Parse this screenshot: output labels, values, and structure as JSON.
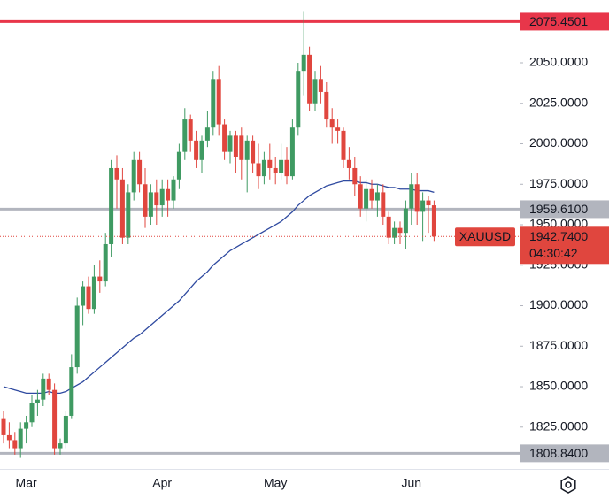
{
  "chart_data": {
    "type": "candlestick",
    "categories": [
      null,
      null,
      null,
      null,
      "Mar",
      null,
      null,
      null,
      null,
      null,
      null,
      null,
      null,
      null,
      null,
      null,
      null,
      null,
      null,
      null,
      null,
      null,
      null,
      null,
      null,
      null,
      null,
      null,
      "Apr",
      null,
      null,
      null,
      null,
      null,
      null,
      null,
      null,
      null,
      null,
      null,
      null,
      null,
      null,
      null,
      null,
      null,
      null,
      null,
      "May",
      null,
      null,
      null,
      null,
      null,
      null,
      null,
      null,
      null,
      null,
      null,
      null,
      null,
      null,
      null,
      null,
      null,
      null,
      null,
      null,
      null,
      null,
      null,
      "Jun",
      null,
      null,
      null,
      null
    ],
    "open": [
      1830,
      1820,
      1817,
      1812,
      1824,
      1828,
      1840,
      1842,
      1855,
      1848,
      1812,
      1815,
      1832,
      1862,
      1900,
      1912,
      1898,
      1918,
      1915,
      1938,
      1985,
      1978,
      1942,
      1970,
      1990,
      1975,
      1955,
      1970,
      1962,
      1972,
      1965,
      1978,
      1995,
      2015,
      2002,
      1990,
      2002,
      2010,
      2040,
      2012,
      1995,
      2005,
      2005,
      1990,
      2002,
      1988,
      1980,
      1990,
      1985,
      1982,
      1990,
      1980,
      2010,
      2045,
      2055,
      2025,
      2040,
      2032,
      2015,
      2010,
      2008,
      1990,
      1985,
      1975,
      1960,
      1972,
      1965,
      1970,
      1955,
      1942,
      1948,
      1945,
      1960,
      1975,
      1958,
      1965,
      1962
    ],
    "high": [
      1835,
      1828,
      1822,
      1828,
      1832,
      1845,
      1848,
      1858,
      1858,
      1852,
      1818,
      1835,
      1870,
      1905,
      1915,
      1918,
      1925,
      1928,
      1945,
      1990,
      1993,
      1985,
      1975,
      1995,
      1995,
      1985,
      1975,
      1978,
      1978,
      1978,
      1980,
      2000,
      2022,
      2018,
      2008,
      2005,
      2020,
      2045,
      2048,
      2015,
      2008,
      2008,
      2010,
      2005,
      2005,
      2000,
      1995,
      2000,
      1992,
      2000,
      1998,
      2015,
      2050,
      2082,
      2060,
      2045,
      2048,
      2038,
      2022,
      2015,
      2010,
      1998,
      1992,
      1980,
      1978,
      1978,
      1975,
      1975,
      1958,
      1952,
      1952,
      1965,
      1982,
      1982,
      1970,
      1968,
      1965
    ],
    "low": [
      1815,
      1812,
      1808,
      1806,
      1815,
      1825,
      1832,
      1838,
      1845,
      1808,
      1808,
      1812,
      1830,
      1858,
      1888,
      1895,
      1895,
      1908,
      1912,
      1930,
      1960,
      1938,
      1938,
      1965,
      1970,
      1948,
      1950,
      1950,
      1955,
      1955,
      1960,
      1972,
      1990,
      1995,
      1985,
      1982,
      1998,
      2005,
      2005,
      1990,
      1988,
      1982,
      1978,
      1970,
      1982,
      1972,
      1975,
      1978,
      1975,
      1978,
      1975,
      1978,
      2005,
      2030,
      2020,
      2020,
      2025,
      2010,
      2000,
      2000,
      1985,
      1978,
      1968,
      1955,
      1952,
      1960,
      1955,
      1950,
      1938,
      1938,
      1938,
      1935,
      1950,
      1950,
      1940,
      1945,
      1940
    ],
    "close": [
      1820,
      1817,
      1812,
      1824,
      1828,
      1840,
      1842,
      1855,
      1848,
      1812,
      1815,
      1832,
      1862,
      1900,
      1912,
      1898,
      1918,
      1915,
      1938,
      1985,
      1978,
      1942,
      1970,
      1990,
      1975,
      1955,
      1970,
      1962,
      1972,
      1965,
      1978,
      1995,
      2015,
      2002,
      1990,
      2002,
      2010,
      2040,
      2012,
      1995,
      2005,
      1992,
      1990,
      2002,
      1988,
      1980,
      1990,
      1985,
      1982,
      1990,
      1980,
      2010,
      2045,
      2055,
      2025,
      2040,
      2032,
      2015,
      2010,
      2008,
      1990,
      1985,
      1975,
      1960,
      1972,
      1965,
      1970,
      1955,
      1942,
      1948,
      1945,
      1960,
      1975,
      1958,
      1965,
      1962,
      1942.74
    ],
    "up_color": "#3f9a62",
    "down_color": "#e0463e",
    "moving_average": {
      "color": "#2f4aa0",
      "values": [
        1850,
        1849,
        1848,
        1847,
        1846,
        1846,
        1846,
        1846,
        1847,
        1846,
        1846,
        1847,
        1849,
        1851,
        1853,
        1856,
        1859,
        1862,
        1865,
        1868,
        1871,
        1874,
        1877,
        1880,
        1882,
        1885,
        1888,
        1891,
        1894,
        1897,
        1900,
        1903,
        1907,
        1911,
        1915,
        1918,
        1921,
        1925,
        1928,
        1931,
        1934,
        1936,
        1938,
        1940,
        1942,
        1944,
        1946,
        1948,
        1950,
        1952,
        1955,
        1958,
        1962,
        1965,
        1968,
        1970,
        1972,
        1974,
        1975,
        1976,
        1977,
        1977,
        1977,
        1976,
        1976,
        1975,
        1975,
        1974,
        1973,
        1973,
        1972,
        1972,
        1972,
        1971,
        1971,
        1971,
        1970
      ]
    },
    "ylim": [
      1799.2,
      2088.8
    ],
    "yticks": [
      {
        "value": 1825,
        "label": "1825.0000"
      },
      {
        "value": 1850,
        "label": "1850.0000"
      },
      {
        "value": 1875,
        "label": "1875.0000"
      },
      {
        "value": 1900,
        "label": "1900.0000"
      },
      {
        "value": 1925,
        "label": "1925.0000"
      },
      {
        "value": 1950,
        "label": "1950.0000"
      },
      {
        "value": 1975,
        "label": "1975.0000"
      },
      {
        "value": 2000,
        "label": "2000.0000"
      },
      {
        "value": 2025,
        "label": "2025.0000"
      },
      {
        "value": 2050,
        "label": "2050.0000"
      }
    ],
    "levels": [
      {
        "value": 2075.4501,
        "color": "#e8364a"
      },
      {
        "value": 1959.61,
        "label": "1959.6100",
        "color": "#b2b5be"
      },
      {
        "value": 1808.84,
        "label": "1808.8400",
        "color": "#b2b5be"
      }
    ],
    "last": {
      "symbol": "XAUUSD",
      "value": 1942.74,
      "label": "1942.7400",
      "countdown": "04:30:42",
      "color": "#e0463e"
    }
  }
}
